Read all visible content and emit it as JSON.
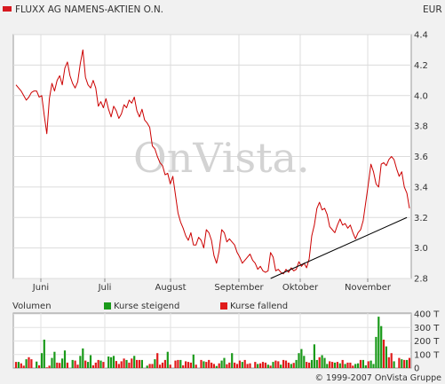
{
  "header": {
    "title": "FLUXX AG NAMENS-AKTIEN O.N.",
    "currency": "EUR",
    "title_marker_color": "#d71920"
  },
  "watermark": "OnVista.",
  "volume_legend": {
    "label": "Volumen",
    "rising": "Kurse steigend",
    "falling": "Kurse fallend"
  },
  "copyright": "© 1999-2007 OnVista Gruppe",
  "colors": {
    "price_line": "#cc0000",
    "trend_line": "#000000",
    "up": "#1a9a1a",
    "down": "#e01b1b"
  },
  "chart_data": [
    {
      "type": "line",
      "title": "FLUXX AG NAMENS-AKTIEN O.N.",
      "x_tick_labels": [
        "Juni",
        "Juli",
        "August",
        "September",
        "Oktober",
        "November"
      ],
      "y_ticks": [
        2.8,
        3.0,
        3.2,
        3.4,
        3.6,
        3.8,
        4.0,
        4.2,
        4.4
      ],
      "ylim": [
        2.8,
        4.4
      ],
      "grid": true,
      "series": [
        {
          "name": "",
          "values": [
            4.07,
            4.05,
            4.03,
            4.0,
            3.97,
            3.99,
            4.02,
            4.03,
            4.03,
            3.99,
            4.0,
            3.87,
            3.75,
            3.98,
            4.08,
            4.03,
            4.1,
            4.13,
            4.07,
            4.18,
            4.22,
            4.13,
            4.08,
            4.05,
            4.09,
            4.21,
            4.3,
            4.12,
            4.07,
            4.05,
            4.1,
            4.05,
            3.93,
            3.96,
            3.92,
            3.98,
            3.91,
            3.86,
            3.93,
            3.9,
            3.85,
            3.88,
            3.94,
            3.92,
            3.97,
            3.95,
            3.99,
            3.9,
            3.86,
            3.91,
            3.84,
            3.82,
            3.79,
            3.67,
            3.65,
            3.6,
            3.56,
            3.54,
            3.48,
            3.49,
            3.42,
            3.47,
            3.35,
            3.23,
            3.17,
            3.13,
            3.08,
            3.05,
            3.1,
            3.02,
            3.02,
            3.07,
            3.05,
            3.0,
            3.12,
            3.1,
            3.05,
            2.95,
            2.9,
            2.98,
            3.12,
            3.1,
            3.04,
            3.06,
            3.04,
            3.02,
            2.97,
            2.94,
            2.9,
            2.92,
            2.94,
            2.96,
            2.92,
            2.9,
            2.86,
            2.88,
            2.85,
            2.84,
            2.85,
            2.97,
            2.94,
            2.85,
            2.86,
            2.84,
            2.83,
            2.86,
            2.84,
            2.87,
            2.85,
            2.86,
            2.91,
            2.88,
            2.9,
            2.87,
            2.93,
            3.08,
            3.15,
            3.26,
            3.3,
            3.25,
            3.26,
            3.22,
            3.14,
            3.12,
            3.1,
            3.15,
            3.19,
            3.15,
            3.16,
            3.13,
            3.15,
            3.1,
            3.06,
            3.1,
            3.12,
            3.18,
            3.3,
            3.42,
            3.55,
            3.5,
            3.42,
            3.4,
            3.55,
            3.56,
            3.54,
            3.58,
            3.6,
            3.58,
            3.52,
            3.47,
            3.5,
            3.4,
            3.36,
            3.26
          ]
        }
      ],
      "annotations": [
        {
          "type": "trend_line",
          "from": [
            99,
            2.8
          ],
          "to": [
            152,
            3.2
          ]
        }
      ]
    },
    {
      "type": "bar",
      "ylabel": "Volumen",
      "y_tick_labels": [
        "400 T",
        "300 T",
        "200 T",
        "100 T",
        "0"
      ],
      "ylim": [
        0,
        400
      ],
      "series": [
        {
          "name": "Kurse steigend",
          "color": "#1a9a1a"
        },
        {
          "name": "Kurse fallend",
          "color": "#e01b1b"
        }
      ],
      "values": [
        45,
        45,
        35,
        18,
        65,
        80,
        65,
        0,
        48,
        20,
        110,
        210,
        5,
        18,
        75,
        120,
        40,
        38,
        70,
        130,
        40,
        0,
        60,
        55,
        25,
        90,
        145,
        55,
        45,
        95,
        20,
        40,
        60,
        55,
        45,
        0,
        85,
        80,
        90,
        52,
        30,
        50,
        70,
        60,
        40,
        70,
        90,
        60,
        60,
        60,
        0,
        18,
        30,
        30,
        65,
        110,
        25,
        40,
        60,
        120,
        25,
        0,
        55,
        60,
        60,
        20,
        50,
        45,
        40,
        100,
        25,
        0,
        60,
        50,
        45,
        60,
        40,
        30,
        15,
        35,
        55,
        75,
        28,
        40,
        110,
        40,
        30,
        55,
        45,
        60,
        30,
        35,
        0,
        45,
        30,
        35,
        45,
        40,
        25,
        18,
        45,
        55,
        50,
        25,
        60,
        55,
        40,
        30,
        38,
        60,
        110,
        140,
        90,
        45,
        40,
        60,
        175,
        60,
        80,
        95,
        75,
        30,
        50,
        45,
        40,
        45,
        35,
        60,
        30,
        40,
        40,
        18,
        30,
        35,
        60,
        60,
        20,
        50,
        55,
        30,
        230,
        380,
        310,
        210,
        160,
        80,
        110,
        50,
        0,
        75,
        65,
        60,
        60,
        75
      ],
      "up": [
        0,
        1,
        0,
        0,
        1,
        0,
        0,
        0,
        1,
        0,
        1,
        1,
        0,
        0,
        1,
        1,
        0,
        0,
        1,
        1,
        0,
        0,
        1,
        0,
        0,
        1,
        1,
        0,
        1,
        1,
        0,
        0,
        0,
        1,
        0,
        0,
        1,
        1,
        1,
        0,
        0,
        0,
        0,
        1,
        0,
        0,
        1,
        0,
        0,
        1,
        0,
        1,
        0,
        0,
        1,
        0,
        0,
        0,
        0,
        1,
        0,
        0,
        0,
        0,
        1,
        0,
        0,
        0,
        0,
        1,
        0,
        0,
        0,
        1,
        0,
        0,
        0,
        0,
        1,
        0,
        1,
        1,
        0,
        0,
        1,
        0,
        0,
        0,
        1,
        0,
        0,
        0,
        0,
        0,
        1,
        0,
        0,
        0,
        1,
        0,
        1,
        0,
        0,
        1,
        0,
        0,
        0,
        1,
        0,
        1,
        1,
        1,
        1,
        0,
        0,
        1,
        1,
        1,
        0,
        1,
        1,
        1,
        0,
        0,
        1,
        0,
        1,
        0,
        1,
        0,
        0,
        0,
        1,
        1,
        0,
        1,
        1,
        0,
        1,
        1,
        1,
        1,
        1,
        0,
        1,
        0,
        0,
        1,
        0,
        0,
        1,
        0,
        1,
        0
      ]
    }
  ]
}
